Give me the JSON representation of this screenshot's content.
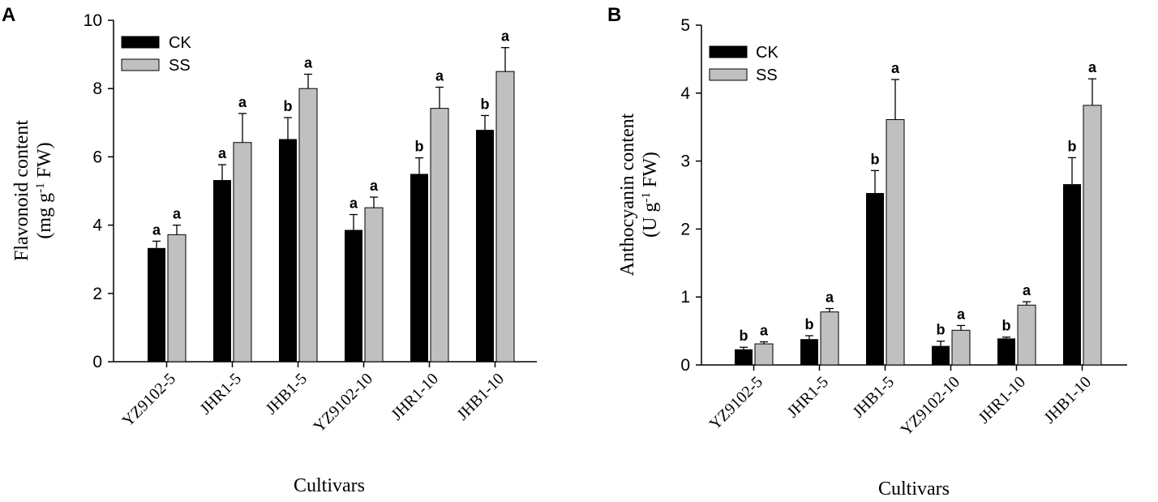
{
  "chart_data": [
    {
      "type": "bar",
      "panel_label": "A",
      "title": "",
      "xlabel": "Cultivars",
      "ylabel_line1": "Flavonoid content",
      "ylabel_line2": [
        "(mg g",
        "-1",
        " FW)"
      ],
      "ylim": [
        0,
        10
      ],
      "yticks": [
        0,
        2,
        4,
        6,
        8,
        10
      ],
      "grid": false,
      "legend_position": "top-left",
      "categories": [
        "YZ9102-5",
        "JHR1-5",
        "JHB1-5",
        "YZ9102-10",
        "JHR1-10",
        "JHB1-10"
      ],
      "series": [
        {
          "name": "CK",
          "color": "#000000",
          "values": [
            3.33,
            5.32,
            6.52,
            3.86,
            5.5,
            6.79
          ],
          "errors": [
            0.2,
            0.45,
            0.63,
            0.45,
            0.47,
            0.42
          ],
          "letters": [
            "a",
            "a",
            "b",
            "a",
            "b",
            "b"
          ]
        },
        {
          "name": "SS",
          "color": "#c0c0c0",
          "values": [
            3.72,
            6.42,
            8.0,
            4.51,
            7.42,
            8.5
          ],
          "errors": [
            0.28,
            0.85,
            0.42,
            0.31,
            0.62,
            0.7
          ],
          "letters": [
            "a",
            "a",
            "a",
            "a",
            "a",
            "a"
          ]
        }
      ]
    },
    {
      "type": "bar",
      "panel_label": "B",
      "title": "",
      "xlabel": "Cultivars",
      "ylabel_line1": "Anthocyanin content",
      "ylabel_line2": [
        "(U g",
        "-1",
        " FW)"
      ],
      "ylim": [
        0,
        5
      ],
      "yticks": [
        0,
        1,
        2,
        3,
        4,
        5
      ],
      "grid": false,
      "legend_position": "top-left",
      "categories": [
        "YZ9102-5",
        "JHR1-5",
        "JHB1-5",
        "YZ9102-10",
        "JHR1-10",
        "JHB1-10"
      ],
      "series": [
        {
          "name": "CK",
          "color": "#000000",
          "values": [
            0.23,
            0.38,
            2.53,
            0.28,
            0.39,
            2.66
          ],
          "errors": [
            0.03,
            0.05,
            0.33,
            0.07,
            0.02,
            0.39
          ],
          "letters": [
            "b",
            "b",
            "b",
            "b",
            "b",
            "b"
          ]
        },
        {
          "name": "SS",
          "color": "#c0c0c0",
          "values": [
            0.31,
            0.78,
            3.61,
            0.51,
            0.88,
            3.82
          ],
          "errors": [
            0.03,
            0.05,
            0.59,
            0.07,
            0.05,
            0.39
          ],
          "letters": [
            "a",
            "a",
            "a",
            "a",
            "a",
            "a"
          ]
        }
      ]
    }
  ]
}
